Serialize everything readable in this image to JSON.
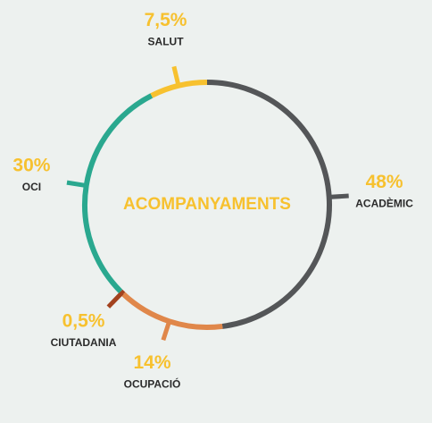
{
  "chart_data": {
    "type": "ring",
    "center_label": "ACOMPANYAMENTS",
    "categories": [
      "ACADÈMIC",
      "OCUPACIÓ",
      "CIUTADANIA",
      "OCI",
      "SALUT"
    ],
    "values": [
      48,
      14,
      0.5,
      30,
      7.5
    ],
    "value_labels": [
      "48%",
      "14%",
      "0,5%",
      "30%",
      "7,5%"
    ],
    "colors": [
      "#545658",
      "#e0874a",
      "#a3421e",
      "#2aa88f",
      "#f7c12f"
    ],
    "label_color": "#f7c12f"
  }
}
